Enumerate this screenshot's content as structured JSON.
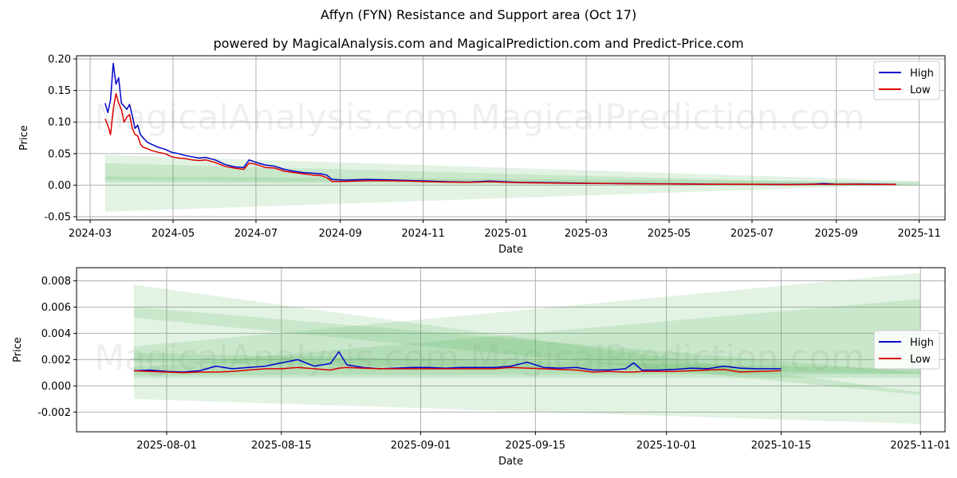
{
  "title": "Affyn (FYN) Resistance and Support area (Oct 17)",
  "subtitle": "powered by MagicalAnalysis.com and MagicalPrediction.com and Predict-Price.com",
  "watermarks": [
    "MagicalAnalysis.com",
    "MagicalPrediction.com"
  ],
  "colors": {
    "high": "#0000cc",
    "low": "#dd0000",
    "band": "#4caf50"
  },
  "chart_data": [
    {
      "type": "line",
      "xlabel": "Date",
      "ylabel": "Price",
      "xlim": [
        "2024-02-20",
        "2025-11-20"
      ],
      "ylim": [
        -0.055,
        0.205
      ],
      "grid": true,
      "legend": "top-right",
      "xticks": [
        "2024-03",
        "2024-05",
        "2024-07",
        "2024-09",
        "2024-11",
        "2025-01",
        "2025-03",
        "2025-05",
        "2025-07",
        "2025-09",
        "2025-11"
      ],
      "yticks": [
        "-0.05",
        "0.00",
        "0.05",
        "0.10",
        "0.15",
        "0.20"
      ],
      "series": [
        {
          "name": "High",
          "x": [
            "2024-03-12",
            "2024-03-14",
            "2024-03-16",
            "2024-03-18",
            "2024-03-20",
            "2024-03-22",
            "2024-03-24",
            "2024-03-26",
            "2024-03-28",
            "2024-03-30",
            "2024-04-01",
            "2024-04-03",
            "2024-04-05",
            "2024-04-07",
            "2024-04-09",
            "2024-04-12",
            "2024-04-15",
            "2024-04-20",
            "2024-04-25",
            "2024-04-30",
            "2024-05-05",
            "2024-05-10",
            "2024-05-15",
            "2024-05-20",
            "2024-05-25",
            "2024-06-01",
            "2024-06-08",
            "2024-06-15",
            "2024-06-22",
            "2024-06-26",
            "2024-07-01",
            "2024-07-08",
            "2024-07-15",
            "2024-07-22",
            "2024-07-29",
            "2024-08-05",
            "2024-08-12",
            "2024-08-18",
            "2024-08-22",
            "2024-08-26",
            "2024-09-05",
            "2024-09-20",
            "2024-10-05",
            "2024-10-20",
            "2024-11-05",
            "2024-11-20",
            "2024-12-05",
            "2024-12-20",
            "2025-01-10",
            "2025-02-01",
            "2025-03-01",
            "2025-04-01",
            "2025-05-01",
            "2025-06-01",
            "2025-07-01",
            "2025-07-28",
            "2025-08-15",
            "2025-08-23",
            "2025-09-01",
            "2025-09-14",
            "2025-09-28",
            "2025-10-15"
          ],
          "values": [
            0.13,
            0.115,
            0.135,
            0.193,
            0.16,
            0.17,
            0.13,
            0.125,
            0.12,
            0.128,
            0.11,
            0.09,
            0.095,
            0.08,
            0.075,
            0.068,
            0.065,
            0.06,
            0.057,
            0.052,
            0.05,
            0.047,
            0.045,
            0.043,
            0.044,
            0.04,
            0.033,
            0.029,
            0.028,
            0.04,
            0.036,
            0.032,
            0.03,
            0.025,
            0.022,
            0.02,
            0.019,
            0.018,
            0.016,
            0.009,
            0.008,
            0.009,
            0.0085,
            0.0075,
            0.0065,
            0.0055,
            0.005,
            0.0065,
            0.0045,
            0.004,
            0.003,
            0.0025,
            0.002,
            0.0017,
            0.0015,
            0.0012,
            0.0017,
            0.0026,
            0.0014,
            0.0018,
            0.0017,
            0.0013
          ]
        },
        {
          "name": "Low",
          "x": [
            "2024-03-12",
            "2024-03-14",
            "2024-03-16",
            "2024-03-18",
            "2024-03-20",
            "2024-03-22",
            "2024-03-24",
            "2024-03-26",
            "2024-03-28",
            "2024-03-30",
            "2024-04-01",
            "2024-04-03",
            "2024-04-05",
            "2024-04-07",
            "2024-04-09",
            "2024-04-12",
            "2024-04-15",
            "2024-04-20",
            "2024-04-25",
            "2024-04-30",
            "2024-05-05",
            "2024-05-10",
            "2024-05-15",
            "2024-05-20",
            "2024-05-25",
            "2024-06-01",
            "2024-06-08",
            "2024-06-15",
            "2024-06-22",
            "2024-06-26",
            "2024-07-01",
            "2024-07-08",
            "2024-07-15",
            "2024-07-22",
            "2024-07-29",
            "2024-08-05",
            "2024-08-12",
            "2024-08-18",
            "2024-08-22",
            "2024-08-26",
            "2024-09-05",
            "2024-09-20",
            "2024-10-05",
            "2024-10-20",
            "2024-11-05",
            "2024-11-20",
            "2024-12-05",
            "2024-12-20",
            "2025-01-10",
            "2025-02-01",
            "2025-03-01",
            "2025-04-01",
            "2025-05-01",
            "2025-06-01",
            "2025-07-01",
            "2025-07-28",
            "2025-08-15",
            "2025-08-23",
            "2025-09-01",
            "2025-09-14",
            "2025-09-28",
            "2025-10-15"
          ],
          "values": [
            0.105,
            0.095,
            0.08,
            0.12,
            0.145,
            0.13,
            0.12,
            0.1,
            0.108,
            0.112,
            0.09,
            0.08,
            0.078,
            0.065,
            0.06,
            0.058,
            0.055,
            0.052,
            0.05,
            0.045,
            0.043,
            0.042,
            0.04,
            0.039,
            0.04,
            0.036,
            0.03,
            0.027,
            0.025,
            0.035,
            0.033,
            0.028,
            0.027,
            0.022,
            0.02,
            0.018,
            0.016,
            0.015,
            0.012,
            0.006,
            0.006,
            0.007,
            0.007,
            0.0065,
            0.0055,
            0.0048,
            0.0045,
            0.0055,
            0.004,
            0.0035,
            0.0028,
            0.0023,
            0.0019,
            0.0016,
            0.0014,
            0.0011,
            0.0014,
            0.0014,
            0.0013,
            0.0014,
            0.0012,
            0.0012
          ]
        }
      ],
      "bands": [
        {
          "x": [
            "2024-03-12",
            "2025-11-01"
          ],
          "upper": [
            0.048,
            0.0065
          ],
          "lower": [
            -0.042,
            0.0015
          ]
        },
        {
          "x": [
            "2024-03-12",
            "2025-11-01"
          ],
          "upper": [
            0.035,
            0.0008
          ],
          "lower": [
            0.004,
            -0.0005
          ]
        },
        {
          "x": [
            "2024-03-12",
            "2025-11-01"
          ],
          "upper": [
            0.014,
            0.005
          ],
          "lower": [
            0.008,
            0.0003
          ]
        }
      ]
    },
    {
      "type": "line",
      "xlabel": "Date",
      "ylabel": "Price",
      "xlim": [
        "2025-07-21",
        "2025-11-04"
      ],
      "ylim": [
        -0.0035,
        0.009
      ],
      "grid": true,
      "legend": "center-right",
      "xticks": [
        "2025-08-01",
        "2025-08-15",
        "2025-09-01",
        "2025-09-15",
        "2025-10-01",
        "2025-10-15",
        "2025-11-01"
      ],
      "yticks": [
        "-0.002",
        "0.000",
        "0.002",
        "0.004",
        "0.006",
        "0.008"
      ],
      "series": [
        {
          "name": "High",
          "x": [
            "2025-07-28",
            "2025-07-30",
            "2025-08-01",
            "2025-08-03",
            "2025-08-05",
            "2025-08-07",
            "2025-08-09",
            "2025-08-11",
            "2025-08-13",
            "2025-08-15",
            "2025-08-17",
            "2025-08-19",
            "2025-08-21",
            "2025-08-22",
            "2025-08-23",
            "2025-08-25",
            "2025-08-27",
            "2025-08-29",
            "2025-08-31",
            "2025-09-02",
            "2025-09-04",
            "2025-09-06",
            "2025-09-08",
            "2025-09-10",
            "2025-09-12",
            "2025-09-14",
            "2025-09-16",
            "2025-09-18",
            "2025-09-20",
            "2025-09-22",
            "2025-09-24",
            "2025-09-26",
            "2025-09-27",
            "2025-09-28",
            "2025-09-30",
            "2025-10-02",
            "2025-10-04",
            "2025-10-06",
            "2025-10-08",
            "2025-10-10",
            "2025-10-12",
            "2025-10-15"
          ],
          "values": [
            0.00115,
            0.0012,
            0.0011,
            0.00105,
            0.00115,
            0.0015,
            0.0013,
            0.0014,
            0.0015,
            0.00175,
            0.002,
            0.0015,
            0.0017,
            0.0026,
            0.0016,
            0.0014,
            0.0013,
            0.00135,
            0.0014,
            0.0014,
            0.00135,
            0.0014,
            0.0014,
            0.0014,
            0.0015,
            0.0018,
            0.0014,
            0.00135,
            0.0014,
            0.0012,
            0.0012,
            0.0013,
            0.00175,
            0.0012,
            0.0012,
            0.00125,
            0.00135,
            0.0013,
            0.0015,
            0.00135,
            0.0013,
            0.0013
          ]
        },
        {
          "name": "Low",
          "x": [
            "2025-07-28",
            "2025-07-30",
            "2025-08-01",
            "2025-08-03",
            "2025-08-05",
            "2025-08-07",
            "2025-08-09",
            "2025-08-11",
            "2025-08-13",
            "2025-08-15",
            "2025-08-17",
            "2025-08-19",
            "2025-08-21",
            "2025-08-22",
            "2025-08-23",
            "2025-08-25",
            "2025-08-27",
            "2025-08-29",
            "2025-08-31",
            "2025-09-02",
            "2025-09-04",
            "2025-09-06",
            "2025-09-08",
            "2025-09-10",
            "2025-09-12",
            "2025-09-14",
            "2025-09-16",
            "2025-09-18",
            "2025-09-20",
            "2025-09-22",
            "2025-09-24",
            "2025-09-26",
            "2025-09-27",
            "2025-09-28",
            "2025-09-30",
            "2025-10-02",
            "2025-10-04",
            "2025-10-06",
            "2025-10-08",
            "2025-10-10",
            "2025-10-12",
            "2025-10-15"
          ],
          "values": [
            0.00115,
            0.0011,
            0.00105,
            0.001,
            0.00105,
            0.00105,
            0.0011,
            0.0012,
            0.0013,
            0.0013,
            0.0014,
            0.0013,
            0.0012,
            0.00135,
            0.0014,
            0.00135,
            0.0013,
            0.0013,
            0.0013,
            0.0013,
            0.0013,
            0.0013,
            0.0013,
            0.0013,
            0.0014,
            0.00135,
            0.0013,
            0.00125,
            0.0012,
            0.00105,
            0.0011,
            0.00105,
            0.00105,
            0.0011,
            0.0011,
            0.0011,
            0.00115,
            0.0012,
            0.00125,
            0.00105,
            0.0011,
            0.00115
          ]
        }
      ],
      "bands": [
        {
          "x": [
            "2025-07-28",
            "2025-11-01"
          ],
          "upper": [
            0.0077,
            -0.0005
          ],
          "lower": [
            -0.001,
            -0.0029
          ]
        },
        {
          "x": [
            "2025-07-28",
            "2025-11-01"
          ],
          "upper": [
            0.006,
            0.001
          ],
          "lower": [
            0.0052,
            -0.0007
          ]
        },
        {
          "x": [
            "2025-07-28",
            "2025-11-01"
          ],
          "upper": [
            0.003,
            0.0086
          ],
          "lower": [
            0.0006,
            0.0006
          ]
        },
        {
          "x": [
            "2025-07-28",
            "2025-11-01"
          ],
          "upper": [
            0.0014,
            0.0066
          ],
          "lower": [
            0.0008,
            0.0009
          ]
        },
        {
          "x": [
            "2025-07-28",
            "2025-11-01"
          ],
          "upper": [
            0.0025,
            0.0013
          ],
          "lower": [
            0.0018,
            0.0009
          ]
        }
      ]
    }
  ]
}
